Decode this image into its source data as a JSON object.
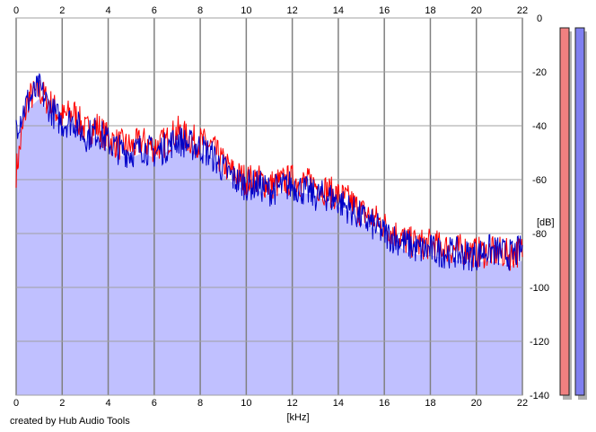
{
  "credit": "created by Hub Audio Tools",
  "chart_data": {
    "type": "area",
    "xlabel": "[kHz]",
    "ylabel": "[dB]",
    "x_ticks": [
      0,
      2,
      4,
      6,
      8,
      10,
      12,
      14,
      16,
      18,
      20,
      22
    ],
    "y_ticks": [
      0,
      -20,
      -40,
      -60,
      -80,
      -100,
      -120,
      -140
    ],
    "xlim": [
      0,
      22
    ],
    "ylim": [
      -140,
      0
    ],
    "grid": true,
    "x": [
      0.0,
      0.5,
      1.0,
      1.5,
      2.0,
      2.5,
      3.0,
      3.5,
      4.0,
      4.5,
      5.0,
      5.5,
      6.0,
      6.5,
      7.0,
      7.5,
      8.0,
      8.5,
      9.0,
      9.5,
      10.0,
      10.5,
      11.0,
      11.5,
      12.0,
      12.5,
      13.0,
      13.5,
      14.0,
      14.5,
      15.0,
      15.5,
      16.0,
      16.5,
      17.0,
      17.5,
      18.0,
      18.5,
      19.0,
      19.5,
      20.0,
      20.5,
      21.0,
      21.5,
      22.0
    ],
    "series": [
      {
        "color": "#ff0000",
        "values": [
          -57,
          -30,
          -27,
          -32,
          -37,
          -35,
          -42,
          -40,
          -45,
          -47,
          -48,
          -46,
          -48,
          -46,
          -42,
          -45,
          -46,
          -48,
          -54,
          -58,
          -60,
          -60,
          -62,
          -61,
          -60,
          -61,
          -62,
          -64,
          -66,
          -68,
          -72,
          -74,
          -77,
          -80,
          -83,
          -84,
          -84,
          -85,
          -86,
          -86,
          -87,
          -87,
          -87,
          -88,
          -86
        ]
      },
      {
        "color": "#0000c8",
        "values": [
          -40,
          -31,
          -26,
          -34,
          -39,
          -38,
          -44,
          -42,
          -46,
          -49,
          -50,
          -48,
          -50,
          -48,
          -45,
          -47,
          -48,
          -51,
          -56,
          -60,
          -62,
          -62,
          -64,
          -63,
          -62,
          -64,
          -66,
          -66,
          -68,
          -71,
          -74,
          -77,
          -80,
          -82,
          -84,
          -86,
          -86,
          -87,
          -87,
          -88,
          -88,
          -86,
          -87,
          -88,
          -86
        ]
      }
    ],
    "area_fill": "#c0c0ff",
    "channel_colors": [
      "#f08080",
      "#8080f0"
    ]
  }
}
